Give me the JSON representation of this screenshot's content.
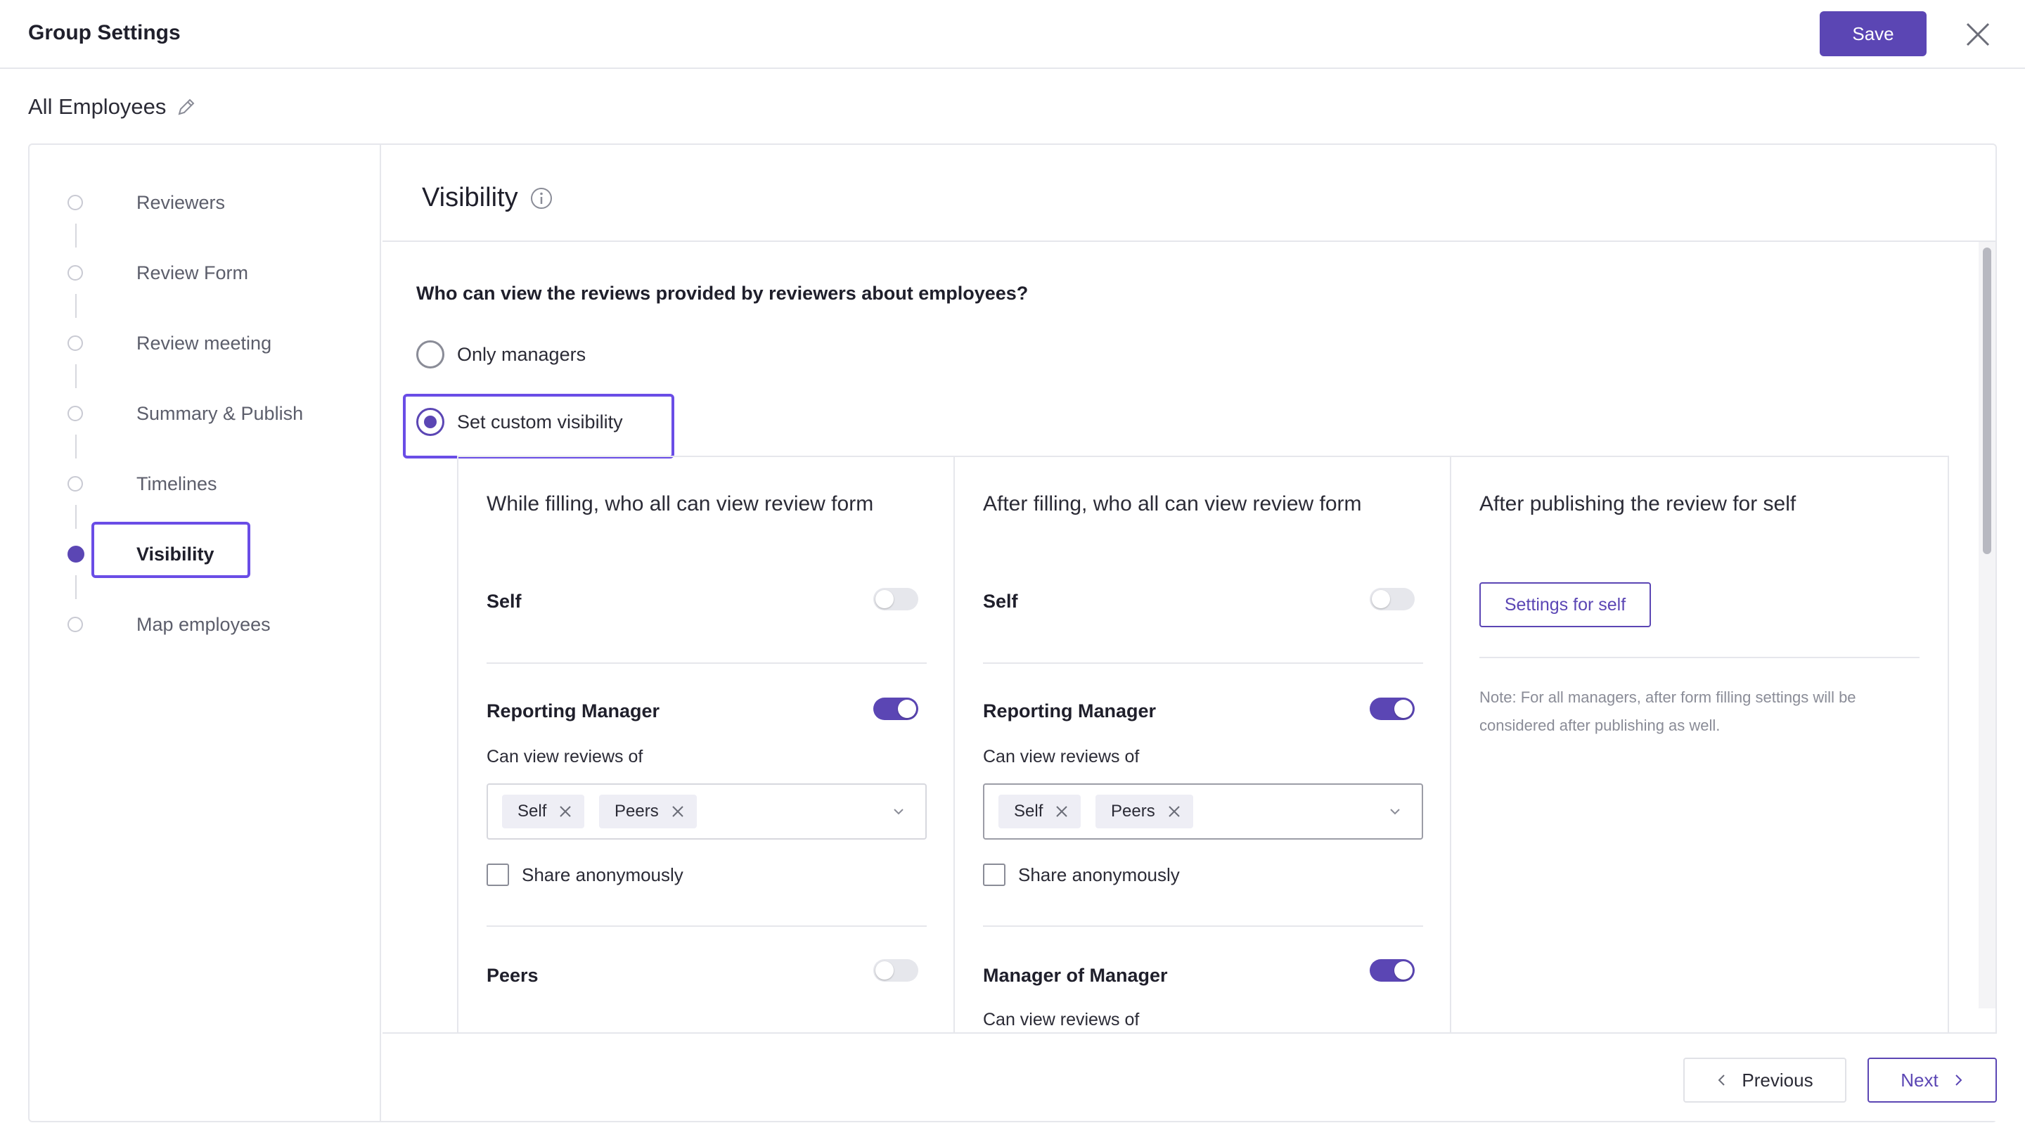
{
  "header": {
    "title": "Group Settings",
    "save_label": "Save"
  },
  "group": {
    "name": "All Employees"
  },
  "stepper": {
    "steps": [
      {
        "label": "Reviewers",
        "active": false
      },
      {
        "label": "Review Form",
        "active": false
      },
      {
        "label": "Review meeting",
        "active": false
      },
      {
        "label": "Summary & Publish",
        "active": false
      },
      {
        "label": "Timelines",
        "active": false
      },
      {
        "label": "Visibility",
        "active": true
      },
      {
        "label": "Map employees",
        "active": false
      }
    ]
  },
  "content": {
    "title": "Visibility",
    "question": "Who can view the reviews provided by reviewers about employees?",
    "options": [
      {
        "label": "Only managers",
        "selected": false
      },
      {
        "label": "Set custom visibility",
        "selected": true
      }
    ]
  },
  "columns": {
    "while_filling": {
      "title": "While filling, who all can view review form",
      "self": {
        "label": "Self",
        "enabled": false
      },
      "reporting_manager": {
        "label": "Reporting Manager",
        "enabled": true,
        "can_view_label": "Can view reviews of",
        "chips": [
          "Self",
          "Peers"
        ],
        "share_anonymously": "Share anonymously"
      },
      "peers": {
        "label": "Peers",
        "enabled": false
      }
    },
    "after_filling": {
      "title": "After filling, who all can view review form",
      "self": {
        "label": "Self",
        "enabled": false
      },
      "reporting_manager": {
        "label": "Reporting Manager",
        "enabled": true,
        "can_view_label": "Can view reviews of",
        "chips": [
          "Self",
          "Peers"
        ],
        "share_anonymously": "Share anonymously"
      },
      "manager_of_manager": {
        "label": "Manager of Manager",
        "enabled": true,
        "can_view_label": "Can view reviews of"
      }
    },
    "after_publishing": {
      "title": "After publishing the review for self",
      "settings_button": "Settings for self",
      "note": "Note: For all managers, after form filling settings will be considered after publishing as well."
    }
  },
  "footer": {
    "previous_label": "Previous",
    "next_label": "Next"
  },
  "colors": {
    "accent": "#5b46b4",
    "highlight": "#6a4de6",
    "border": "#e6e7ec"
  },
  "icons": [
    "close-icon",
    "pencil-icon",
    "info-icon",
    "chip-remove-icon",
    "chevron-down-icon",
    "chevron-left-icon",
    "chevron-right-icon"
  ]
}
